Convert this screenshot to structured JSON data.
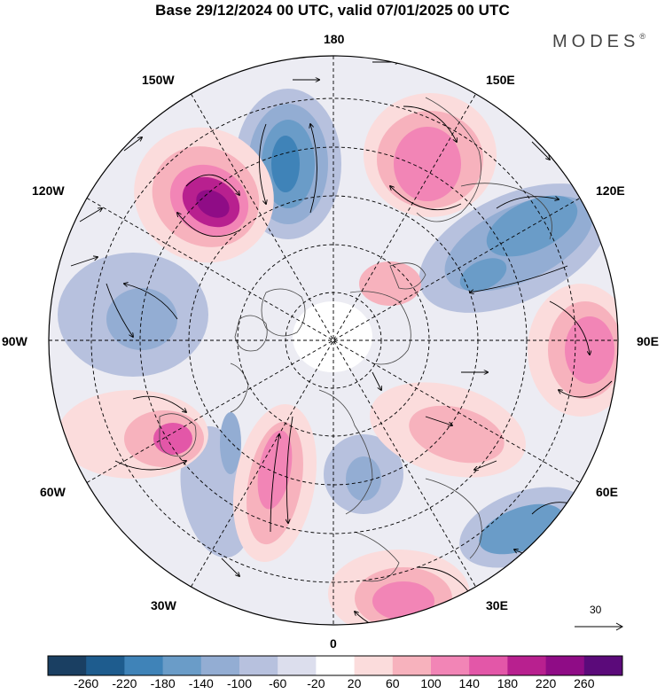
{
  "title": "Base 29/12/2024 00 UTC, valid 07/01/2025 00 UTC",
  "brand": "MODES",
  "brand_mark": "®",
  "longitude_labels": {
    "top": "180",
    "top_right": "150E",
    "upper_right": "120E",
    "right": "90E",
    "lower_right": "60E",
    "bottom_right": "30E",
    "bottom": "0",
    "bottom_left": "30W",
    "lower_left": "60W",
    "left": "90W",
    "upper_left": "120W",
    "top_left": "150W"
  },
  "colorbar": {
    "ticks": [
      "-260",
      "-220",
      "-180",
      "-140",
      "-100",
      "-60",
      "-20",
      "20",
      "60",
      "100",
      "140",
      "180",
      "220",
      "260"
    ],
    "colors": [
      "#1a3f62",
      "#1e5c8e",
      "#3f83b8",
      "#6a9cc8",
      "#93add3",
      "#b7c1de",
      "#dcdeed",
      "#ffffff",
      "#fbdcdc",
      "#f7b2bd",
      "#f285b6",
      "#e357a8",
      "#b8208f",
      "#8f0c86",
      "#5b0a7a"
    ]
  },
  "wind_scale_label": "30"
}
